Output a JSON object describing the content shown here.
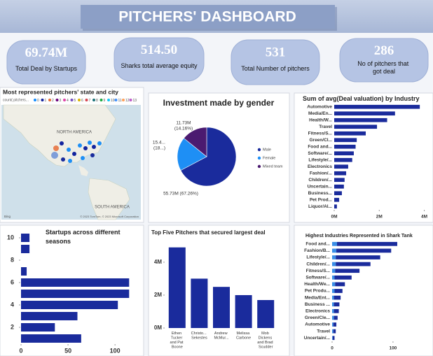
{
  "title": "PITCHERS' DASHBOARD",
  "cards": [
    {
      "value": "69.74M",
      "label": "Total Deal by Startups"
    },
    {
      "value": "514.50",
      "label": "Sharks total average equity"
    },
    {
      "value": "531",
      "label": "Total Number of pitchers"
    },
    {
      "value": "286",
      "label": "No of pitchers that got deal"
    }
  ],
  "map": {
    "title": "Most represented pitchers' state and city",
    "legend_title": "count( pitchers...",
    "legend": [
      {
        "label": "0",
        "color": "#118dff"
      },
      {
        "label": "1",
        "color": "#12239e"
      },
      {
        "label": "2",
        "color": "#e66c37"
      },
      {
        "label": "3",
        "color": "#6b007b"
      },
      {
        "label": "4",
        "color": "#e044a7"
      },
      {
        "label": "5",
        "color": "#744ec2"
      },
      {
        "label": "6",
        "color": "#d9b300"
      },
      {
        "label": "7",
        "color": "#d64550"
      },
      {
        "label": "8",
        "color": "#197278"
      },
      {
        "label": "9",
        "color": "#1aab40"
      },
      {
        "label": "10",
        "color": "#15c6f4"
      },
      {
        "label": "11",
        "color": "#4092ff"
      },
      {
        "label": "12",
        "color": "#ffa058"
      },
      {
        "label": "13",
        "color": "#be5dc9"
      }
    ],
    "regions": [
      "NORTH AMERICA",
      "SOUTH AMERICA"
    ],
    "logo": "Bing",
    "attribution": "© 2023 TomTom, © 2023 Microsoft Corporation"
  },
  "chart_data": [
    {
      "type": "pie",
      "title": "Investment made by gender",
      "categories": [
        "Male",
        "Female",
        "Mixed team"
      ],
      "values": [
        55.73,
        15.4,
        11.73
      ],
      "value_labels": [
        [
          "55.73M (67.26%)"
        ],
        [
          "15.4...",
          "(18...)"
        ],
        [
          "11.73M",
          "(14.16%)"
        ]
      ],
      "colors": [
        "#1a2b9c",
        "#1e8ff5",
        "#4b1a70"
      ]
    },
    {
      "type": "barh",
      "title": "Sum of avg(Deal valuation) by Industry",
      "categories": [
        "Automotive",
        "Media/En...",
        "Health/W...",
        "Travel",
        "Fitness/S...",
        "Green/Cl...",
        "Food and...",
        "Software/...",
        "Lifestyle/...",
        "Electronics",
        "Fashion/...",
        "Children/...",
        "Uncertain...",
        "Business...",
        "Pet Prod...",
        "Liquor/Al..."
      ],
      "values": [
        3.8,
        2.7,
        2.35,
        1.9,
        1.4,
        1.0,
        0.95,
        0.87,
        0.8,
        0.62,
        0.53,
        0.46,
        0.43,
        0.34,
        0.22,
        0.12
      ],
      "color": "#1a2b9c",
      "xlim": [
        0,
        4.2
      ],
      "xticks": [
        {
          "value": 0,
          "label": "0M"
        },
        {
          "value": 2,
          "label": "2M"
        },
        {
          "value": 4,
          "label": "4M"
        }
      ]
    },
    {
      "type": "barh",
      "title": "Startups across different seasons",
      "y": [
        1,
        2,
        3,
        4,
        5,
        6,
        7,
        8,
        9,
        10
      ],
      "values": [
        64,
        36,
        60,
        103,
        115,
        115,
        6,
        null,
        9,
        9
      ],
      "color": "#1a2b9c",
      "ylim": [
        0.5,
        10.5
      ],
      "yticks": [
        2,
        4,
        6,
        8,
        10
      ],
      "xlim": [
        0,
        120
      ],
      "xticks": [
        0,
        50,
        100
      ]
    },
    {
      "type": "bar",
      "title": "Top Five Pitchers that secured largest deal",
      "categories": [
        "Ethen Tucker and Pat Boone",
        "Christo... Sekestes",
        "Andrew McMur...",
        "Melissa Carbone",
        "Mob Dickens and Brad Scudder"
      ],
      "values": [
        4.9,
        3.0,
        2.5,
        2.0,
        1.7
      ],
      "color": "#1a2b9c",
      "ylim": [
        0,
        5.1
      ],
      "yticks": [
        {
          "value": 0,
          "label": "0M"
        },
        {
          "value": 2,
          "label": "2M"
        },
        {
          "value": 4,
          "label": "4M"
        }
      ]
    },
    {
      "type": "barh",
      "title": "Highest Industries Represented in Shark Tank",
      "stacked": true,
      "categories": [
        "Food and...",
        "Fashion/B...",
        "Lifestyle/...",
        "Children/...",
        "Fitness/S...",
        "Software/...",
        "Health/We...",
        "Pet Produ...",
        "Media/Ent...",
        "Business ...",
        "Electronics",
        "Green/Cle...",
        "Automotive",
        "Travel",
        "Uncertain/..."
      ],
      "series": [
        {
          "color": "#3a8ee6",
          "values": [
            8,
            7,
            6,
            6,
            5,
            4,
            5,
            4,
            3,
            3,
            3,
            3,
            2,
            2,
            1
          ]
        },
        {
          "color": "#1a2b9c",
          "values": [
            99,
            90,
            73,
            57,
            40,
            28,
            16,
            13,
            11,
            9,
            8,
            6,
            5,
            4,
            3
          ]
        }
      ],
      "xlim": [
        0,
        145
      ],
      "xticks": [
        0,
        100
      ]
    }
  ]
}
